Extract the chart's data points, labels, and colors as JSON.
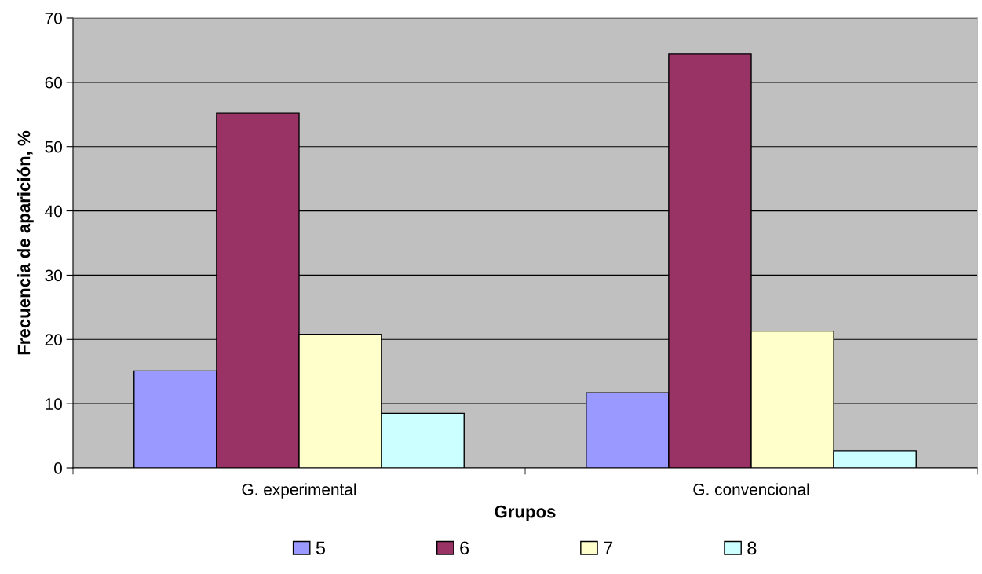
{
  "chart_data": {
    "type": "bar",
    "xlabel": "Grupos",
    "ylabel": "Frecuencia de aparición, %",
    "categories": [
      "G. experimental",
      "G. convencional"
    ],
    "series": [
      {
        "name": "5",
        "color": "#9999ff",
        "values": [
          15.1,
          11.7
        ]
      },
      {
        "name": "6",
        "color": "#993366",
        "values": [
          55.2,
          64.4
        ]
      },
      {
        "name": "7",
        "color": "#ffffcc",
        "values": [
          20.8,
          21.3
        ]
      },
      {
        "name": "8",
        "color": "#ccffff",
        "values": [
          8.5,
          2.7
        ]
      }
    ],
    "ylim": [
      0,
      70
    ],
    "yticks": [
      0,
      10,
      20,
      30,
      40,
      50,
      60,
      70
    ],
    "grid": "y",
    "legend": "bottom"
  }
}
